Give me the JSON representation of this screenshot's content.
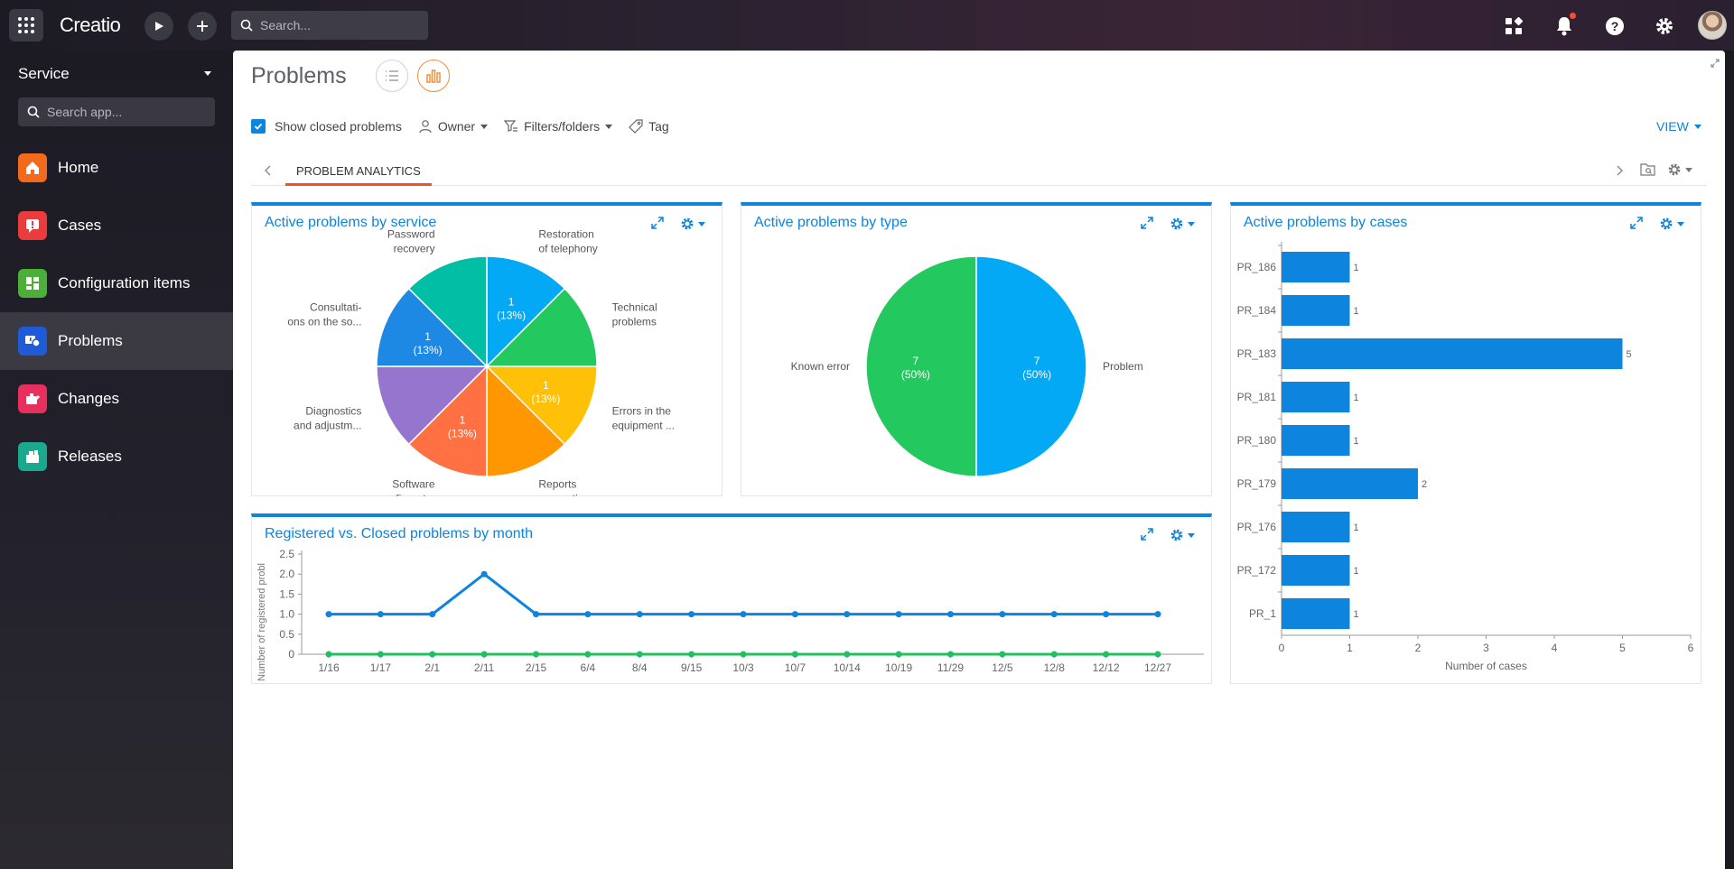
{
  "topbar": {
    "logo": "Creatio",
    "search_placeholder": "Search..."
  },
  "sidebar": {
    "workspace": "Service",
    "search_placeholder": "Search app...",
    "items": [
      {
        "label": "Home",
        "icon": "home-icon",
        "color": "#f26b1d"
      },
      {
        "label": "Cases",
        "icon": "case-icon",
        "color": "#ea3c3c"
      },
      {
        "label": "Configuration items",
        "icon": "config-items-icon",
        "color": "#4caf3a"
      },
      {
        "label": "Problems",
        "icon": "problems-icon",
        "color": "#1f5bd8"
      },
      {
        "label": "Changes",
        "icon": "changes-icon",
        "color": "#e8305e"
      },
      {
        "label": "Releases",
        "icon": "releases-icon",
        "color": "#1aa88e"
      }
    ],
    "active_index": 3
  },
  "page": {
    "title": "Problems",
    "filters": {
      "show_closed_label": "Show closed problems",
      "show_closed_checked": true,
      "owner_label": "Owner",
      "filters_label": "Filters/folders",
      "tag_label": "Tag"
    },
    "view_label": "VIEW",
    "tab_label": "PROBLEM ANALYTICS"
  },
  "colors": {
    "accent": "#0d84de",
    "tab_underline": "#f24f2a",
    "chart_blue": "#03a9f4",
    "line_blue": "#0d84de",
    "line_green": "#20c060"
  },
  "widgets": {
    "by_service": {
      "title": "Active problems by service",
      "chart_data": {
        "type": "pie",
        "slices": [
          {
            "label": [
              "Restoration",
              "of telephony"
            ],
            "value": 1,
            "value_text": "1",
            "pct_text": "(13%)",
            "color": "#03a9f4",
            "show_value": true
          },
          {
            "label": [
              "Technical",
              "problems"
            ],
            "value": 1,
            "value_text": "",
            "pct_text": "",
            "color": "#23c95e",
            "show_value": false
          },
          {
            "label": [
              "Errors in the",
              "equipment ..."
            ],
            "value": 1,
            "value_text": "1",
            "pct_text": "(13%)",
            "color": "#ffc107",
            "show_value": true
          },
          {
            "label": [
              "Reports",
              "generation"
            ],
            "value": 1,
            "value_text": "",
            "pct_text": "",
            "color": "#ff9800",
            "show_value": false
          },
          {
            "label": [
              "Software",
              "configurat..."
            ],
            "value": 1,
            "value_text": "1",
            "pct_text": "(13%)",
            "color": "#ff7043",
            "show_value": true
          },
          {
            "label": [
              "Diagnostics",
              "and adjustm..."
            ],
            "value": 1,
            "value_text": "",
            "pct_text": "",
            "color": "#9575cd",
            "show_value": false
          },
          {
            "label": [
              "Consultati-",
              "ons on the so..."
            ],
            "value": 1,
            "value_text": "1",
            "pct_text": "(13%)",
            "color": "#1e88e5",
            "show_value": true
          },
          {
            "label": [
              "Password",
              "recovery"
            ],
            "value": 1,
            "value_text": "",
            "pct_text": "",
            "color": "#00bfa5",
            "show_value": false
          }
        ]
      }
    },
    "by_type": {
      "title": "Active problems by type",
      "chart_data": {
        "type": "pie",
        "slices": [
          {
            "label": "Problem",
            "value": 7,
            "value_text": "7",
            "pct_text": "(50%)",
            "color": "#03a9f4"
          },
          {
            "label": "Known error",
            "value": 7,
            "value_text": "7",
            "pct_text": "(50%)",
            "color": "#23c95e"
          }
        ]
      }
    },
    "by_cases": {
      "title": "Active problems by cases",
      "chart_data": {
        "type": "bar",
        "orientation": "horizontal",
        "categories": [
          "PR_186",
          "PR_184",
          "PR_183",
          "PR_181",
          "PR_180",
          "PR_179",
          "PR_176",
          "PR_172",
          "PR_1"
        ],
        "values": [
          1,
          1,
          5,
          1,
          1,
          2,
          1,
          1,
          1
        ],
        "xlabel": "Number of cases",
        "xlim": [
          0,
          6
        ],
        "xticks": [
          "0",
          "1",
          "2",
          "3",
          "4",
          "5",
          "6"
        ],
        "color": "#0d84de"
      }
    },
    "by_month": {
      "title": "Registered vs. Closed problems by month",
      "chart_data": {
        "type": "line",
        "x": [
          "1/16",
          "1/17",
          "2/1",
          "2/11",
          "2/15",
          "6/4",
          "8/4",
          "9/15",
          "10/3",
          "10/7",
          "10/14",
          "10/19",
          "11/29",
          "12/5",
          "12/8",
          "12/12",
          "12/27"
        ],
        "series": [
          {
            "values": [
              1,
              1,
              1,
              2,
              1,
              1,
              1,
              1,
              1,
              1,
              1,
              1,
              1,
              1,
              1,
              1,
              1
            ],
            "color": "#0d84de"
          },
          {
            "values": [
              0,
              0,
              0,
              0,
              0,
              0,
              0,
              0,
              0,
              0,
              0,
              0,
              0,
              0,
              0,
              0,
              0
            ],
            "color": "#20c060"
          }
        ],
        "ylabel": "Number of registered probl",
        "ylim": [
          0,
          2.5
        ],
        "yticks": [
          "0",
          "0.5",
          "1.0",
          "1.5",
          "2.0",
          "2.5"
        ]
      }
    }
  }
}
